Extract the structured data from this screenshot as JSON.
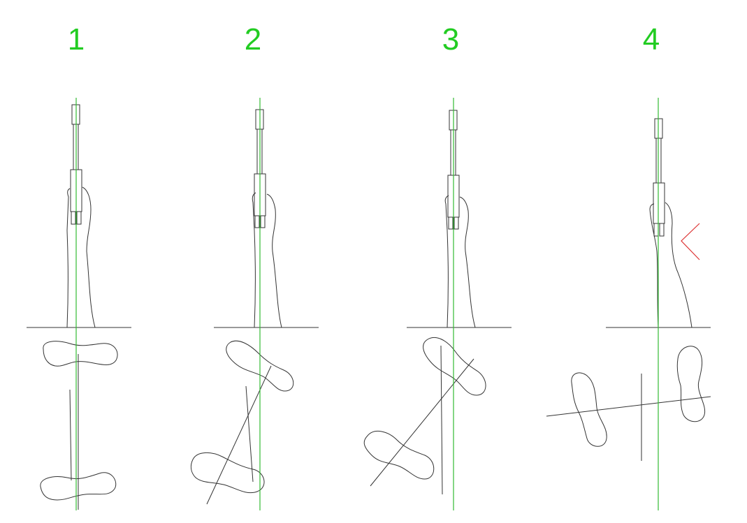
{
  "colors": {
    "label": "#22cc22",
    "axis": "#33bb33",
    "line": "#333333",
    "marker": "#dd3333"
  },
  "panels": [
    {
      "label": "1"
    },
    {
      "label": "2"
    },
    {
      "label": "3"
    },
    {
      "label": "4"
    }
  ]
}
